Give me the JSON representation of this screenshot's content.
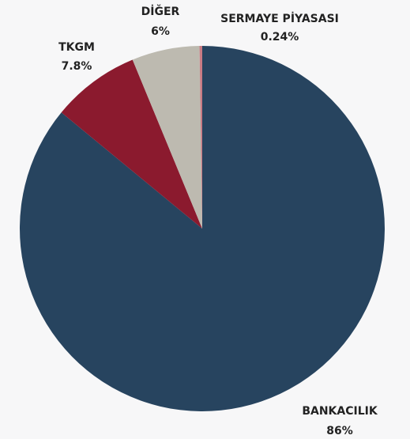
{
  "chart_data": {
    "type": "pie",
    "categories": [
      "BANKACILIK",
      "TKGM",
      "DİĞER",
      "SERMAYE PİYASASI"
    ],
    "values": [
      86,
      7.8,
      6,
      0.24
    ],
    "value_labels": [
      "86%",
      "7.8%",
      "6%",
      "0.24%"
    ],
    "colors": [
      "#27445f",
      "#8b1a2e",
      "#bdbab0",
      "#c97b84"
    ]
  }
}
